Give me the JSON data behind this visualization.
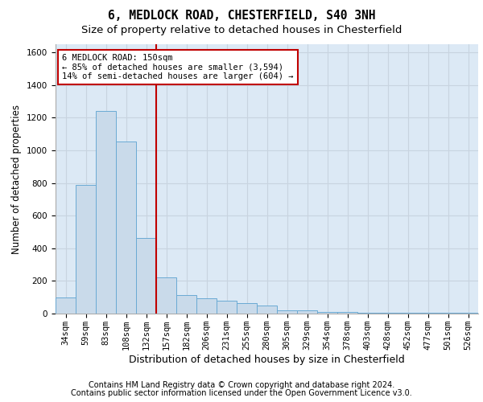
{
  "title_line1": "6, MEDLOCK ROAD, CHESTERFIELD, S40 3NH",
  "title_line2": "Size of property relative to detached houses in Chesterfield",
  "xlabel": "Distribution of detached houses by size in Chesterfield",
  "ylabel": "Number of detached properties",
  "footer_line1": "Contains HM Land Registry data © Crown copyright and database right 2024.",
  "footer_line2": "Contains public sector information licensed under the Open Government Licence v3.0.",
  "annotation_line1": "6 MEDLOCK ROAD: 150sqm",
  "annotation_line2": "← 85% of detached houses are smaller (3,594)",
  "annotation_line3": "14% of semi-detached houses are larger (604) →",
  "bar_color": "#c9daea",
  "bar_edge_color": "#6aaad4",
  "vline_color": "#c00000",
  "annotation_box_edge_color": "#c00000",
  "grid_color": "#c8d4e0",
  "background_color": "#dce9f5",
  "fig_background": "#ffffff",
  "categories": [
    "34sqm",
    "59sqm",
    "83sqm",
    "108sqm",
    "132sqm",
    "157sqm",
    "182sqm",
    "206sqm",
    "231sqm",
    "255sqm",
    "280sqm",
    "305sqm",
    "329sqm",
    "354sqm",
    "378sqm",
    "403sqm",
    "428sqm",
    "452sqm",
    "477sqm",
    "501sqm",
    "526sqm"
  ],
  "values": [
    100,
    790,
    1240,
    1055,
    465,
    220,
    115,
    95,
    80,
    65,
    50,
    20,
    20,
    10,
    8,
    5,
    5,
    5,
    5,
    5,
    5
  ],
  "ylim": [
    0,
    1650
  ],
  "yticks": [
    0,
    200,
    400,
    600,
    800,
    1000,
    1200,
    1400,
    1600
  ],
  "vline_x_index": 4.5,
  "title_fontsize": 10.5,
  "subtitle_fontsize": 9.5,
  "ylabel_fontsize": 8.5,
  "xlabel_fontsize": 9,
  "tick_fontsize": 7.5,
  "annotation_fontsize": 7.5,
  "footer_fontsize": 7
}
